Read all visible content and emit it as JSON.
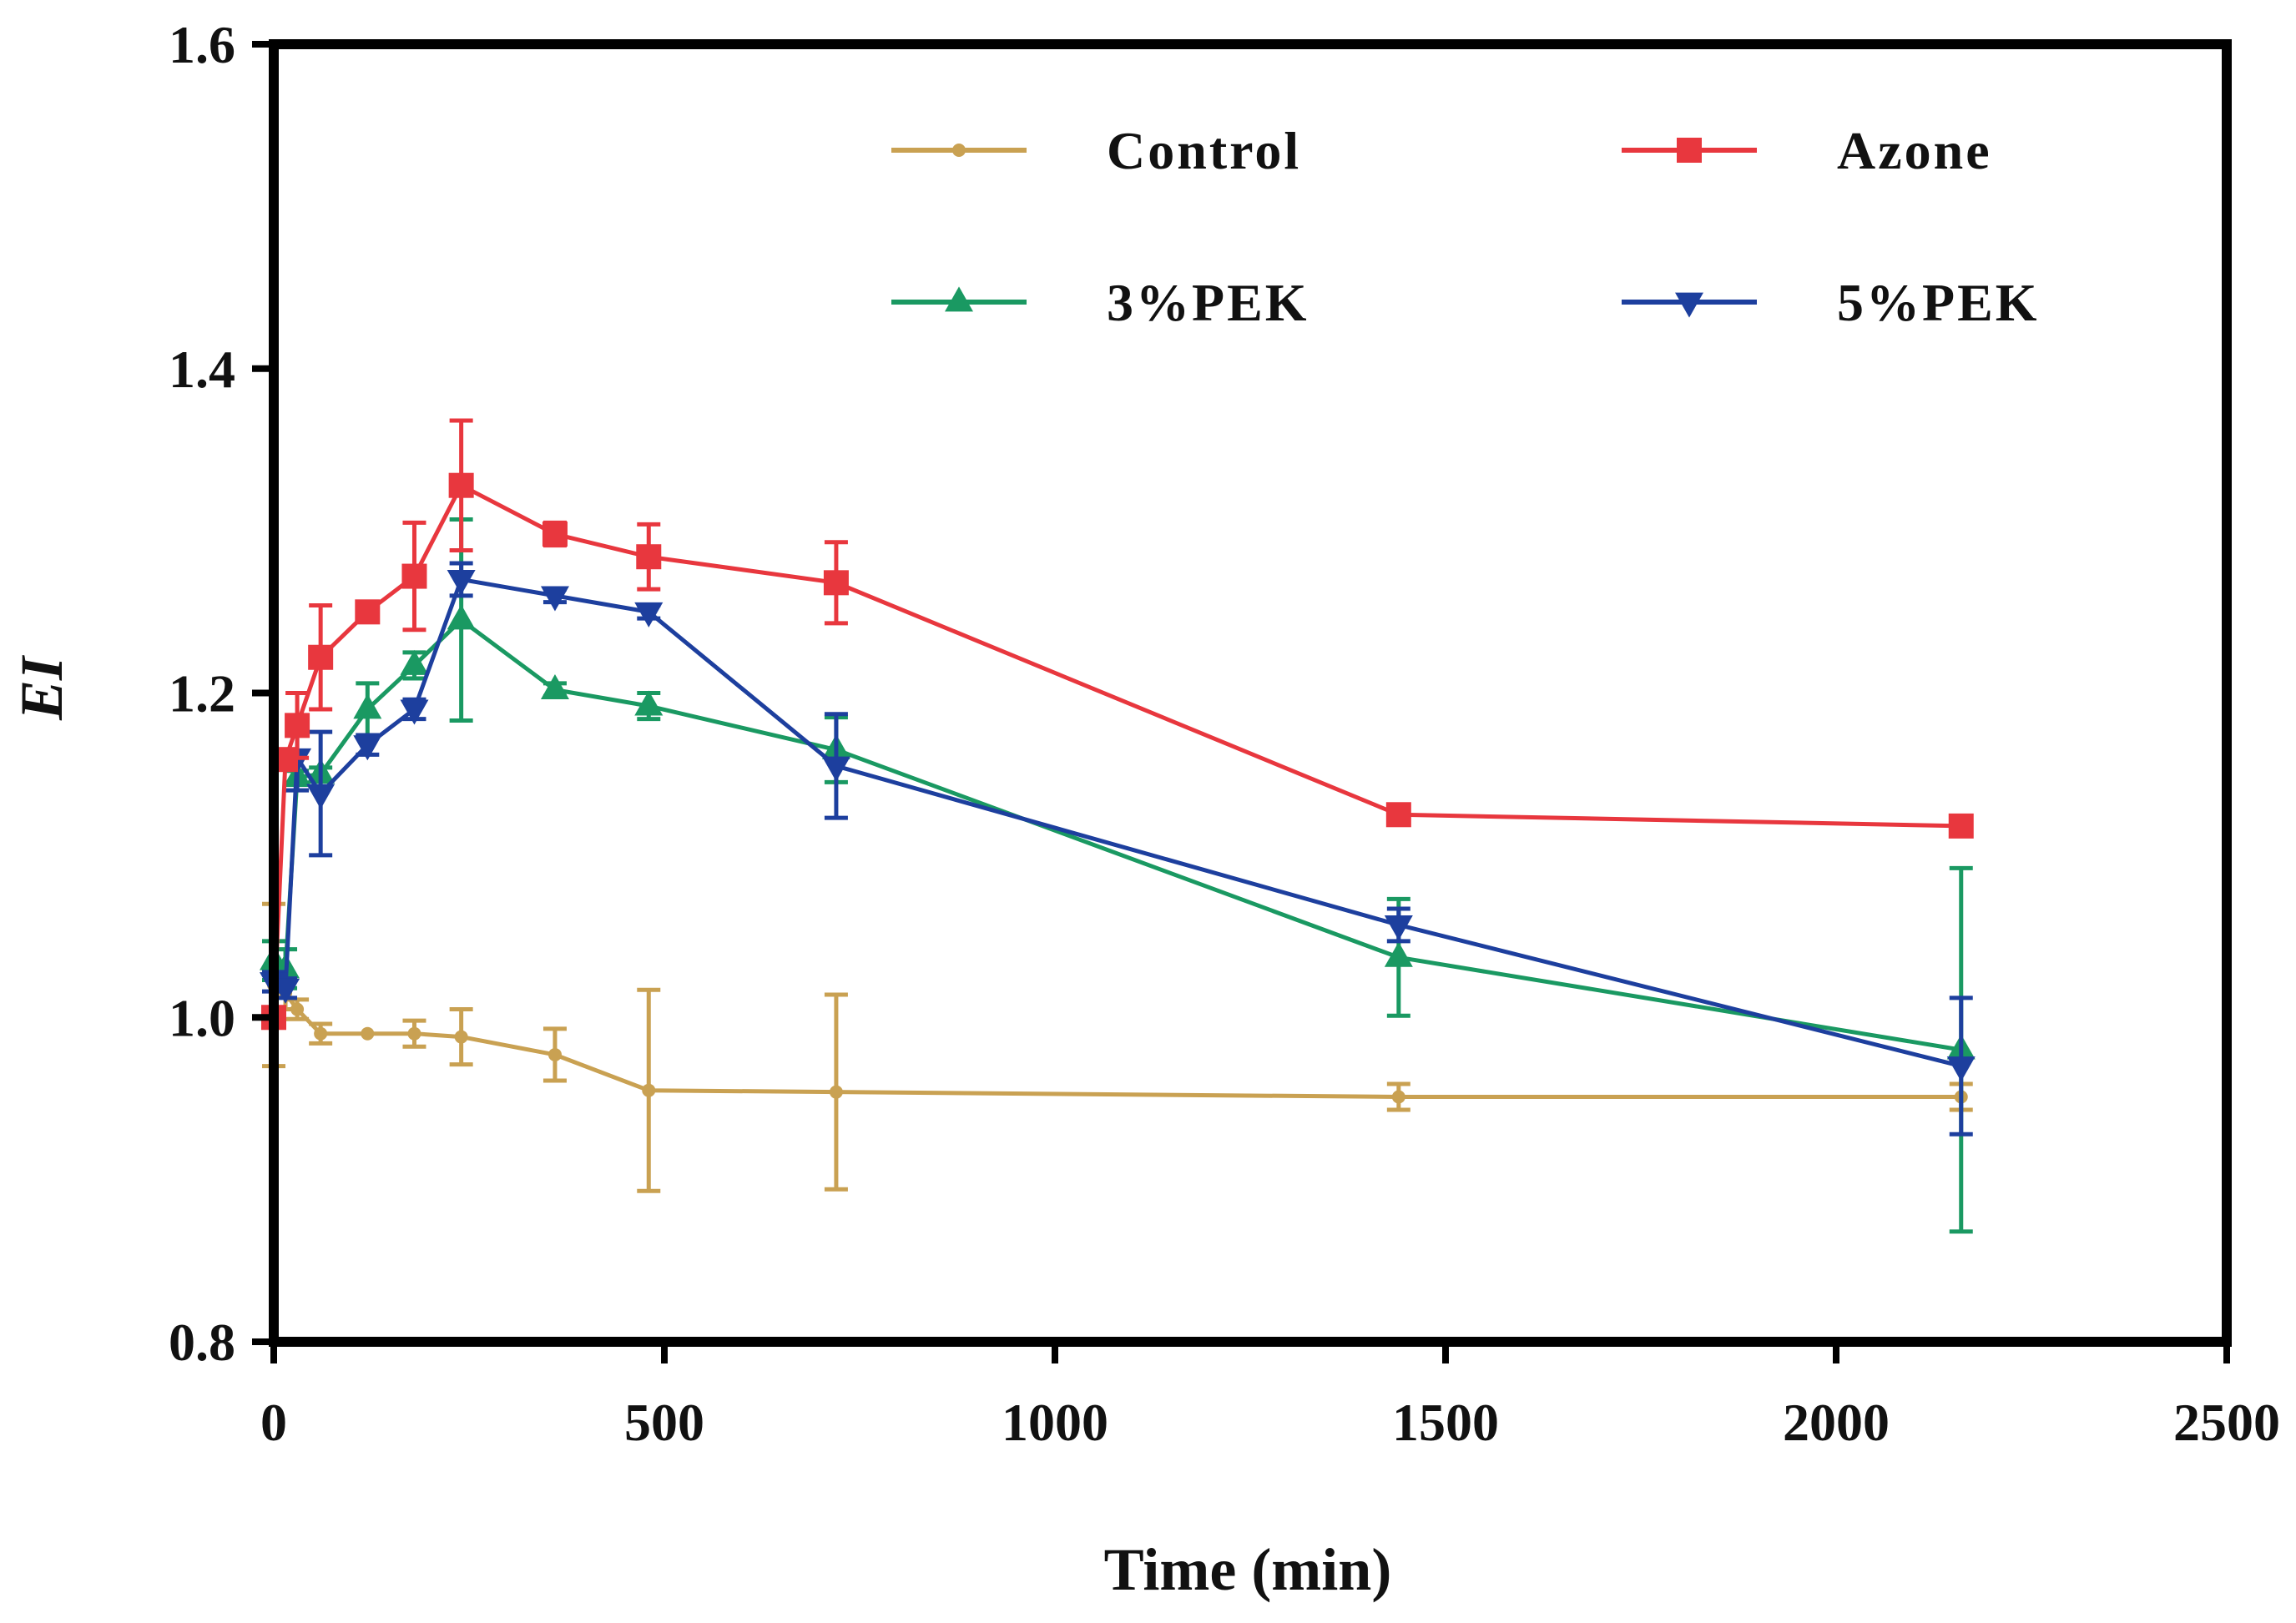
{
  "chart_data": {
    "type": "line",
    "title": "",
    "xlabel": "Time (min)",
    "ylabel": "EI",
    "xlim": [
      0,
      2500
    ],
    "ylim": [
      0.8,
      1.6
    ],
    "xticks": [
      0,
      500,
      1000,
      1500,
      2000,
      2500
    ],
    "yticks": [
      0.8,
      1.0,
      1.2,
      1.4,
      1.6
    ],
    "xtick_labels": [
      "0",
      "500",
      "1000",
      "1500",
      "2000",
      "2500"
    ],
    "ytick_labels": [
      "0.8",
      "1.0",
      "1.2",
      "1.4",
      "1.6"
    ],
    "grid": false,
    "legend_position": "top-right",
    "series": [
      {
        "name": "Control",
        "color": "#C9A152",
        "marker": "circle",
        "x": [
          0,
          15,
          30,
          60,
          120,
          180,
          240,
          360,
          480,
          720,
          1440,
          2160
        ],
        "y": [
          1.02,
          1.015,
          1.005,
          0.99,
          0.99,
          0.99,
          0.988,
          0.977,
          0.955,
          0.954,
          0.951,
          0.951
        ],
        "err": [
          0.05,
          0.01,
          0.006,
          0.006,
          0.0,
          0.008,
          0.017,
          0.016,
          0.062,
          0.06,
          0.008,
          0.008
        ]
      },
      {
        "name": "Azone",
        "color": "#E8373E",
        "marker": "square",
        "x": [
          0,
          15,
          30,
          60,
          120,
          180,
          240,
          360,
          480,
          720,
          1440,
          2160
        ],
        "y": [
          1.0,
          1.159,
          1.18,
          1.222,
          1.25,
          1.272,
          1.328,
          1.298,
          1.284,
          1.268,
          1.125,
          1.118
        ],
        "err": [
          0.0,
          0.006,
          0.02,
          0.032,
          0.004,
          0.033,
          0.04,
          0.007,
          0.02,
          0.025,
          0.004,
          0.004
        ]
      },
      {
        "name": "3%PEK",
        "color": "#1A9962",
        "marker": "triangle-up",
        "x": [
          0,
          15,
          30,
          60,
          120,
          180,
          240,
          360,
          480,
          720,
          1440,
          2160
        ],
        "y": [
          1.035,
          1.03,
          1.148,
          1.15,
          1.19,
          1.217,
          1.245,
          1.202,
          1.192,
          1.165,
          1.037,
          0.98
        ],
        "err": [
          0.012,
          0.012,
          0.004,
          0.004,
          0.016,
          0.008,
          0.062,
          0.004,
          0.008,
          0.02,
          0.036,
          0.112
        ]
      },
      {
        "name": "5%PEK",
        "color": "#1D3F9E",
        "marker": "triangle-down",
        "x": [
          0,
          15,
          30,
          60,
          120,
          180,
          240,
          360,
          480,
          720,
          1440,
          2160
        ],
        "y": [
          1.022,
          1.018,
          1.16,
          1.138,
          1.168,
          1.19,
          1.27,
          1.26,
          1.25,
          1.155,
          1.057,
          0.97
        ],
        "err": [
          0.006,
          0.006,
          0.02,
          0.038,
          0.006,
          0.006,
          0.01,
          0.004,
          0.004,
          0.032,
          0.01,
          0.042
        ]
      }
    ]
  }
}
